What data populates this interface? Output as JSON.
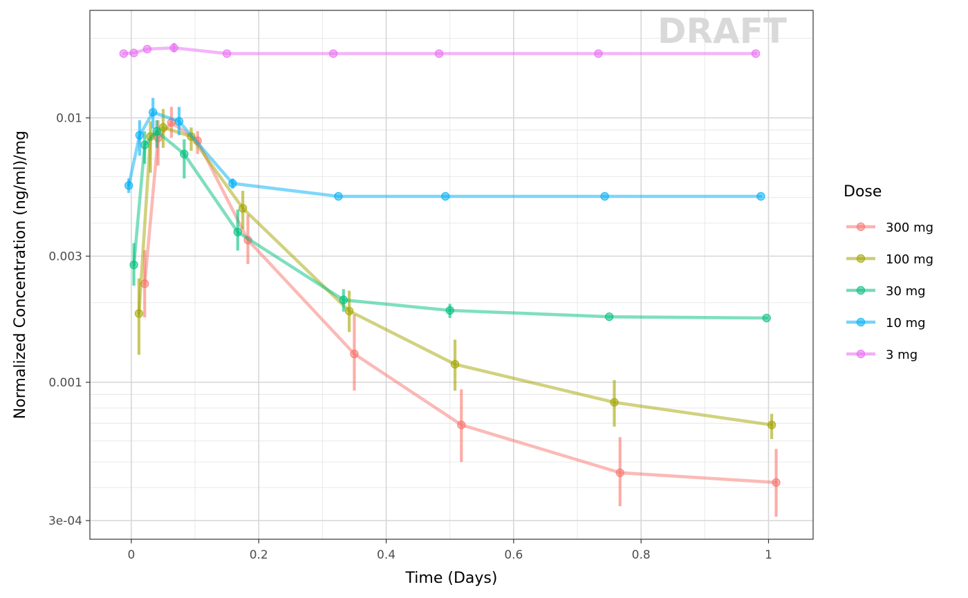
{
  "chart_data": {
    "type": "line",
    "watermark": "DRAFT",
    "xlabel": "Time (Days)",
    "ylabel": "Normalized Concentration (ng/ml)/mg",
    "xlim": [
      -0.065,
      1.07
    ],
    "ylim": [
      0.000255,
      0.0255
    ],
    "yscale": "log",
    "grid": true,
    "x_ticks": [
      {
        "value": 0,
        "label": "0"
      },
      {
        "value": 0.2,
        "label": "0.2"
      },
      {
        "value": 0.4,
        "label": "0.4"
      },
      {
        "value": 0.6,
        "label": "0.6"
      },
      {
        "value": 0.8,
        "label": "0.8"
      },
      {
        "value": 1,
        "label": "1"
      }
    ],
    "y_ticks": [
      {
        "value": 0.0003,
        "label": "3e-04"
      },
      {
        "value": 0.001,
        "label": "0.001"
      },
      {
        "value": 0.003,
        "label": "0.003"
      },
      {
        "value": 0.01,
        "label": "0.01"
      }
    ],
    "legend": {
      "title": "Dose",
      "placement": "right"
    },
    "series": [
      {
        "name": "300 mg",
        "color": "#F8766D",
        "points": [
          {
            "x": 0.021,
            "y": 0.00236,
            "lo": 0.00176,
            "hi": 0.00316
          },
          {
            "x": 0.042,
            "y": 0.0084,
            "lo": 0.0066,
            "hi": 0.0098
          },
          {
            "x": 0.063,
            "y": 0.0096,
            "lo": 0.0084,
            "hi": 0.011
          },
          {
            "x": 0.104,
            "y": 0.0082,
            "lo": 0.0073,
            "hi": 0.0089
          },
          {
            "x": 0.183,
            "y": 0.00345,
            "lo": 0.0028,
            "hi": 0.0043
          },
          {
            "x": 0.35,
            "y": 0.00128,
            "lo": 0.00093,
            "hi": 0.0018
          },
          {
            "x": 0.518,
            "y": 0.00069,
            "lo": 0.0005,
            "hi": 0.00094
          },
          {
            "x": 0.767,
            "y": 0.000455,
            "lo": 0.00034,
            "hi": 0.00062
          },
          {
            "x": 1.012,
            "y": 0.000418,
            "lo": 0.00031,
            "hi": 0.00056
          }
        ]
      },
      {
        "name": "100 mg",
        "color": "#A3A500",
        "points": [
          {
            "x": 0.012,
            "y": 0.00182,
            "lo": 0.00127,
            "hi": 0.00247
          },
          {
            "x": 0.03,
            "y": 0.0085,
            "lo": 0.0062,
            "hi": 0.0097
          },
          {
            "x": 0.05,
            "y": 0.0092,
            "lo": 0.0077,
            "hi": 0.0108
          },
          {
            "x": 0.094,
            "y": 0.0085,
            "lo": 0.0075,
            "hi": 0.0092
          },
          {
            "x": 0.175,
            "y": 0.00455,
            "lo": 0.0038,
            "hi": 0.0053
          },
          {
            "x": 0.342,
            "y": 0.00186,
            "lo": 0.00155,
            "hi": 0.00222
          },
          {
            "x": 0.508,
            "y": 0.00117,
            "lo": 0.00093,
            "hi": 0.00145
          },
          {
            "x": 0.758,
            "y": 0.00084,
            "lo": 0.00068,
            "hi": 0.00102
          },
          {
            "x": 1.005,
            "y": 0.00069,
            "lo": 0.00061,
            "hi": 0.00076
          }
        ]
      },
      {
        "name": "30 mg",
        "color": "#00BF7D",
        "points": [
          {
            "x": 0.004,
            "y": 0.00278,
            "lo": 0.00232,
            "hi": 0.00336
          },
          {
            "x": 0.021,
            "y": 0.0079,
            "lo": 0.0067,
            "hi": 0.0089
          },
          {
            "x": 0.04,
            "y": 0.0089,
            "lo": 0.0077,
            "hi": 0.0098
          },
          {
            "x": 0.083,
            "y": 0.0073,
            "lo": 0.0059,
            "hi": 0.0083
          },
          {
            "x": 0.167,
            "y": 0.0037,
            "lo": 0.00315,
            "hi": 0.0045
          },
          {
            "x": 0.333,
            "y": 0.00205,
            "lo": 0.00185,
            "hi": 0.00225
          },
          {
            "x": 0.5,
            "y": 0.00187,
            "lo": 0.00175,
            "hi": 0.00198
          },
          {
            "x": 0.75,
            "y": 0.00177
          },
          {
            "x": 0.997,
            "y": 0.00175
          }
        ]
      },
      {
        "name": "10 mg",
        "color": "#00B0F6",
        "points": [
          {
            "x": -0.004,
            "y": 0.00555,
            "lo": 0.0052,
            "hi": 0.0059
          },
          {
            "x": 0.013,
            "y": 0.0086,
            "lo": 0.0072,
            "hi": 0.0098
          },
          {
            "x": 0.034,
            "y": 0.0105,
            "lo": 0.0091,
            "hi": 0.0119
          },
          {
            "x": 0.075,
            "y": 0.0097,
            "lo": 0.0086,
            "hi": 0.011
          },
          {
            "x": 0.159,
            "y": 0.00565,
            "lo": 0.0054,
            "hi": 0.0059
          },
          {
            "x": 0.325,
            "y": 0.00505
          },
          {
            "x": 0.493,
            "y": 0.00505
          },
          {
            "x": 0.743,
            "y": 0.00505
          },
          {
            "x": 0.988,
            "y": 0.00505
          }
        ]
      },
      {
        "name": "3 mg",
        "color": "#E76BF3",
        "points": [
          {
            "x": -0.012,
            "y": 0.0175
          },
          {
            "x": 0.004,
            "y": 0.0176
          },
          {
            "x": 0.025,
            "y": 0.0182
          },
          {
            "x": 0.067,
            "y": 0.0184,
            "lo": 0.0177,
            "hi": 0.0192
          },
          {
            "x": 0.15,
            "y": 0.0175
          },
          {
            "x": 0.317,
            "y": 0.0175
          },
          {
            "x": 0.483,
            "y": 0.0175
          },
          {
            "x": 0.733,
            "y": 0.0175
          },
          {
            "x": 0.98,
            "y": 0.0175
          }
        ]
      }
    ]
  }
}
